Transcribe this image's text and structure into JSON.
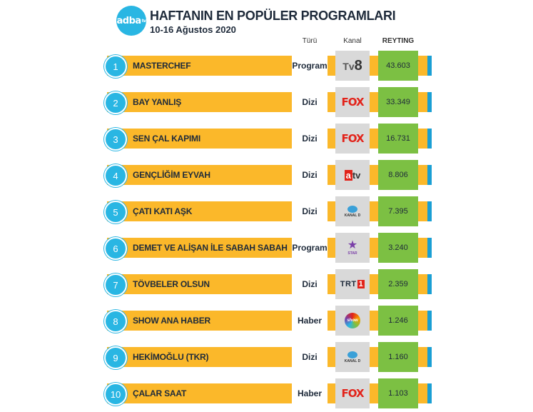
{
  "header": {
    "logo_text": "adba",
    "logo_suffix": "tv",
    "title": "HAFTANIN EN POPÜLER PROGRAMLARI",
    "subtitle": "10-16 Ağustos 2020"
  },
  "columns": {
    "type": "Türü",
    "channel": "Kanal",
    "rating": "REYTING"
  },
  "colors": {
    "bar": "#fbb82a",
    "accent": "#29b6e3",
    "rating_bg": "#7cc043",
    "channel_bg": "#d9d9d9"
  },
  "rows": [
    {
      "rank": "1",
      "name": "MASTERCHEF",
      "type": "Program",
      "channel_icon": "tv8-logo-icon",
      "rating": "43.603"
    },
    {
      "rank": "2",
      "name": "BAY YANLIŞ",
      "type": "Dizi",
      "channel_icon": "fox-logo-icon",
      "rating": "33.349"
    },
    {
      "rank": "3",
      "name": "SEN ÇAL KAPIMI",
      "type": "Dizi",
      "channel_icon": "fox-logo-icon",
      "rating": "16.731"
    },
    {
      "rank": "4",
      "name": "GENÇLİĞİM EYVAH",
      "type": "Dizi",
      "channel_icon": "atv-logo-icon",
      "rating": "8.806"
    },
    {
      "rank": "5",
      "name": "ÇATI KATI AŞK",
      "type": "Dizi",
      "channel_icon": "kanald-logo-icon",
      "rating": "7.395"
    },
    {
      "rank": "6",
      "name": "DEMET VE ALİŞAN İLE SABAH SABAH",
      "type": "Program",
      "channel_icon": "star-logo-icon",
      "rating": "3.240"
    },
    {
      "rank": "7",
      "name": "TÖVBELER OLSUN",
      "type": "Dizi",
      "channel_icon": "trt1-logo-icon",
      "rating": "2.359"
    },
    {
      "rank": "8",
      "name": "SHOW ANA HABER",
      "type": "Haber",
      "channel_icon": "show-logo-icon",
      "rating": "1.246"
    },
    {
      "rank": "9",
      "name": "HEKİMOĞLU (TKR)",
      "type": "Dizi",
      "channel_icon": "kanald-logo-icon",
      "rating": "1.160"
    },
    {
      "rank": "10",
      "name": "ÇALAR SAAT",
      "type": "Haber",
      "channel_icon": "fox-logo-icon",
      "rating": "1.103"
    }
  ]
}
